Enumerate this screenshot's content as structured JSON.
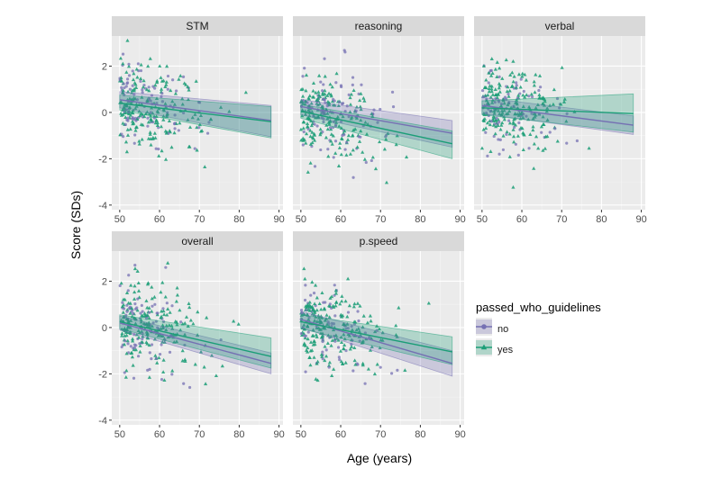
{
  "chart_data": {
    "type": "scatter",
    "xlabel": "Age (years)",
    "ylabel": "Score (SDs)",
    "xlim": [
      48,
      91
    ],
    "ylim": [
      -4.2,
      3.3
    ],
    "x_ticks": [
      "50",
      "60",
      "70",
      "80",
      "90"
    ],
    "y_ticks": [
      "-4",
      "-2",
      "0",
      "2"
    ],
    "grid": true,
    "legend": {
      "title": "passed_who_guidelines",
      "placement": "right",
      "entries": [
        {
          "name": "no",
          "color": "#7570b3",
          "marker": "circle"
        },
        {
          "name": "yes",
          "color": "#1b9e77",
          "marker": "triangle"
        }
      ]
    },
    "panels": [
      {
        "title": "STM",
        "fits": [
          {
            "series": "no",
            "x": [
              50,
              88
            ],
            "y": [
              0.55,
              -0.35
            ],
            "ci_start": [
              0.2,
              0.9
            ],
            "ci_end": [
              -1.05,
              0.3
            ]
          },
          {
            "series": "yes",
            "x": [
              50,
              88
            ],
            "y": [
              0.4,
              -0.4
            ],
            "ci_start": [
              0.1,
              0.75
            ],
            "ci_end": [
              -1.1,
              0.25
            ]
          }
        ]
      },
      {
        "title": "reasoning",
        "fits": [
          {
            "series": "no",
            "x": [
              50,
              88
            ],
            "y": [
              0.25,
              -0.9
            ],
            "ci_start": [
              -0.1,
              0.55
            ],
            "ci_end": [
              -1.5,
              -0.35
            ]
          },
          {
            "series": "yes",
            "x": [
              50,
              88
            ],
            "y": [
              0.05,
              -1.35
            ],
            "ci_start": [
              -0.25,
              0.35
            ],
            "ci_end": [
              -2.0,
              -0.8
            ]
          }
        ]
      },
      {
        "title": "verbal",
        "fits": [
          {
            "series": "no",
            "x": [
              50,
              88
            ],
            "y": [
              0.3,
              -0.55
            ],
            "ci_start": [
              -0.05,
              0.65
            ],
            "ci_end": [
              -0.95,
              -0.15
            ]
          },
          {
            "series": "yes",
            "x": [
              50,
              88
            ],
            "y": [
              0.2,
              -0.05
            ],
            "ci_start": [
              -0.1,
              0.5
            ],
            "ci_end": [
              -0.85,
              0.8
            ]
          }
        ]
      },
      {
        "title": "overall",
        "fits": [
          {
            "series": "no",
            "x": [
              50,
              88
            ],
            "y": [
              0.2,
              -1.55
            ],
            "ci_start": [
              -0.1,
              0.5
            ],
            "ci_end": [
              -2.0,
              -1.1
            ]
          },
          {
            "series": "yes",
            "x": [
              50,
              88
            ],
            "y": [
              0.25,
              -1.25
            ],
            "ci_start": [
              -0.05,
              0.55
            ],
            "ci_end": [
              -1.75,
              -0.45
            ]
          }
        ]
      },
      {
        "title": "p.speed",
        "fits": [
          {
            "series": "no",
            "x": [
              50,
              88
            ],
            "y": [
              0.35,
              -1.55
            ],
            "ci_start": [
              0.0,
              0.7
            ],
            "ci_end": [
              -2.1,
              -1.0
            ]
          },
          {
            "series": "yes",
            "x": [
              50,
              88
            ],
            "y": [
              0.25,
              -1.05
            ],
            "ci_start": [
              -0.05,
              0.55
            ],
            "ci_end": [
              -1.6,
              -0.4
            ]
          }
        ]
      }
    ],
    "scatter_summary": {
      "x_range": [
        50,
        88
      ],
      "note_dense_age_range": [
        50,
        72
      ],
      "y_spread_sd": 0.9
    }
  }
}
